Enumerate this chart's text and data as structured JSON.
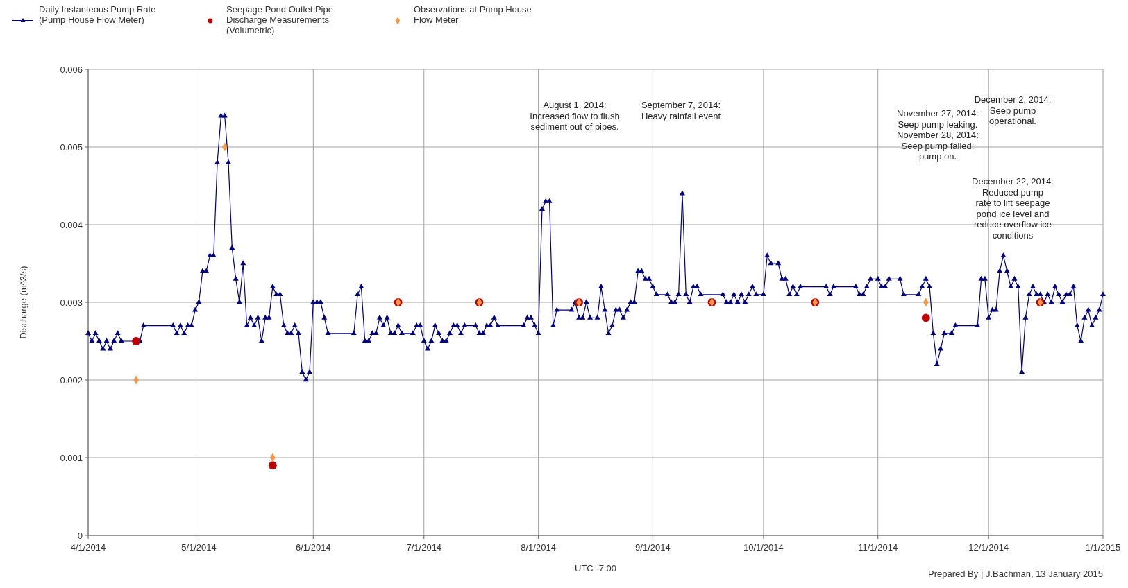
{
  "chart_data": {
    "type": "line",
    "xlabel": "UTC -7:00",
    "ylabel": "Discharge (m^3/s)",
    "xlim": [
      "2014-04-01",
      "2015-01-01"
    ],
    "ylim": [
      0,
      0.006
    ],
    "xticks": [
      {
        "value": "2014-04-01",
        "label": "4/1/2014"
      },
      {
        "value": "2014-05-01",
        "label": "5/1/2014"
      },
      {
        "value": "2014-06-01",
        "label": "6/1/2014"
      },
      {
        "value": "2014-07-01",
        "label": "7/1/2014"
      },
      {
        "value": "2014-08-01",
        "label": "8/1/2014"
      },
      {
        "value": "2014-09-01",
        "label": "9/1/2014"
      },
      {
        "value": "2014-10-01",
        "label": "10/1/2014"
      },
      {
        "value": "2014-11-01",
        "label": "11/1/2014"
      },
      {
        "value": "2014-12-01",
        "label": "12/1/2014"
      },
      {
        "value": "2015-01-01",
        "label": "1/1/2015"
      }
    ],
    "yticks": [
      0,
      0.001,
      0.002,
      0.003,
      0.004,
      0.005,
      0.006
    ],
    "grid": true,
    "legend": "top left",
    "series": [
      {
        "name": "Daily Instanteous Pump Rate (Pump House Flow Meter)",
        "color": "#000080",
        "marker": "triangle",
        "x": [
          "2014-04-01",
          "2014-04-02",
          "2014-04-03",
          "2014-04-04",
          "2014-04-05",
          "2014-04-06",
          "2014-04-07",
          "2014-04-08",
          "2014-04-09",
          "2014-04-10",
          "2014-04-14",
          "2014-04-15",
          "2014-04-16",
          "2014-04-24",
          "2014-04-25",
          "2014-04-26",
          "2014-04-27",
          "2014-04-28",
          "2014-04-29",
          "2014-04-30",
          "2014-05-01",
          "2014-05-02",
          "2014-05-03",
          "2014-05-04",
          "2014-05-05",
          "2014-05-06",
          "2014-05-07",
          "2014-05-08",
          "2014-05-09",
          "2014-05-10",
          "2014-05-11",
          "2014-05-12",
          "2014-05-13",
          "2014-05-14",
          "2014-05-15",
          "2014-05-16",
          "2014-05-17",
          "2014-05-18",
          "2014-05-19",
          "2014-05-20",
          "2014-05-21",
          "2014-05-22",
          "2014-05-23",
          "2014-05-24",
          "2014-05-25",
          "2014-05-26",
          "2014-05-27",
          "2014-05-28",
          "2014-05-29",
          "2014-05-30",
          "2014-05-31",
          "2014-06-01",
          "2014-06-02",
          "2014-06-03",
          "2014-06-04",
          "2014-06-05",
          "2014-06-12",
          "2014-06-13",
          "2014-06-14",
          "2014-06-15",
          "2014-06-16",
          "2014-06-17",
          "2014-06-18",
          "2014-06-19",
          "2014-06-20",
          "2014-06-21",
          "2014-06-22",
          "2014-06-23",
          "2014-06-24",
          "2014-06-25",
          "2014-06-28",
          "2014-06-29",
          "2014-06-30",
          "2014-07-01",
          "2014-07-02",
          "2014-07-03",
          "2014-07-04",
          "2014-07-05",
          "2014-07-06",
          "2014-07-07",
          "2014-07-08",
          "2014-07-09",
          "2014-07-10",
          "2014-07-11",
          "2014-07-12",
          "2014-07-15",
          "2014-07-16",
          "2014-07-17",
          "2014-07-18",
          "2014-07-19",
          "2014-07-20",
          "2014-07-21",
          "2014-07-28",
          "2014-07-29",
          "2014-07-30",
          "2014-07-31",
          "2014-08-01",
          "2014-08-02",
          "2014-08-03",
          "2014-08-04",
          "2014-08-05",
          "2014-08-06",
          "2014-08-10",
          "2014-08-11",
          "2014-08-12",
          "2014-08-13",
          "2014-08-14",
          "2014-08-15",
          "2014-08-17",
          "2014-08-18",
          "2014-08-19",
          "2014-08-20",
          "2014-08-21",
          "2014-08-22",
          "2014-08-23",
          "2014-08-24",
          "2014-08-25",
          "2014-08-26",
          "2014-08-27",
          "2014-08-28",
          "2014-08-29",
          "2014-08-30",
          "2014-08-31",
          "2014-09-01",
          "2014-09-02",
          "2014-09-05",
          "2014-09-06",
          "2014-09-07",
          "2014-09-08",
          "2014-09-09",
          "2014-09-10",
          "2014-09-11",
          "2014-09-12",
          "2014-09-13",
          "2014-09-14",
          "2014-09-20",
          "2014-09-21",
          "2014-09-22",
          "2014-09-23",
          "2014-09-24",
          "2014-09-25",
          "2014-09-26",
          "2014-09-27",
          "2014-09-28",
          "2014-09-29",
          "2014-10-01",
          "2014-10-02",
          "2014-10-03",
          "2014-10-05",
          "2014-10-06",
          "2014-10-07",
          "2014-10-08",
          "2014-10-09",
          "2014-10-10",
          "2014-10-11",
          "2014-10-18",
          "2014-10-19",
          "2014-10-20",
          "2014-10-26",
          "2014-10-27",
          "2014-10-28",
          "2014-10-29",
          "2014-10-30",
          "2014-11-01",
          "2014-11-02",
          "2014-11-03",
          "2014-11-04",
          "2014-11-07",
          "2014-11-08",
          "2014-11-12",
          "2014-11-13",
          "2014-11-14",
          "2014-11-15",
          "2014-11-16",
          "2014-11-17",
          "2014-11-18",
          "2014-11-19",
          "2014-11-21",
          "2014-11-22",
          "2014-11-28",
          "2014-11-29",
          "2014-11-30",
          "2014-12-01",
          "2014-12-02",
          "2014-12-03",
          "2014-12-04",
          "2014-12-05",
          "2014-12-06",
          "2014-12-07",
          "2014-12-08",
          "2014-12-09",
          "2014-12-10",
          "2014-12-11",
          "2014-12-12",
          "2014-12-13",
          "2014-12-14",
          "2014-12-15",
          "2014-12-16",
          "2014-12-17",
          "2014-12-18",
          "2014-12-19",
          "2014-12-20",
          "2014-12-21",
          "2014-12-22",
          "2014-12-23",
          "2014-12-24",
          "2014-12-25",
          "2014-12-26",
          "2014-12-27",
          "2014-12-28",
          "2014-12-29",
          "2014-12-30",
          "2014-12-31",
          "2015-01-01"
        ],
        "values": [
          0.0026,
          0.0025,
          0.0026,
          0.0025,
          0.0024,
          0.0025,
          0.0024,
          0.0025,
          0.0026,
          0.0025,
          null,
          0.0025,
          0.0027,
          0.0027,
          0.0026,
          0.0027,
          0.0026,
          0.0027,
          0.0027,
          0.0029,
          0.003,
          0.0034,
          0.0034,
          0.0036,
          0.0036,
          0.0048,
          0.0054,
          0.0054,
          0.0048,
          0.0037,
          0.0033,
          0.003,
          0.0035,
          0.0027,
          0.0028,
          0.0027,
          0.0028,
          0.0025,
          0.0028,
          0.0028,
          0.0032,
          0.0031,
          0.0031,
          0.0027,
          0.0026,
          0.0026,
          0.0027,
          0.0026,
          0.0021,
          0.002,
          0.0021,
          0.003,
          0.003,
          0.003,
          0.0028,
          0.0026,
          0.0026,
          0.0031,
          0.0032,
          0.0025,
          0.0025,
          0.0026,
          0.0026,
          0.0028,
          0.0027,
          0.0028,
          0.0026,
          0.0026,
          0.0027,
          0.0026,
          0.0026,
          0.0027,
          0.0027,
          0.0025,
          0.0024,
          0.0025,
          0.0027,
          0.0026,
          0.0025,
          0.0025,
          0.0026,
          0.0027,
          0.0027,
          0.0026,
          0.0027,
          0.0027,
          0.0026,
          0.0026,
          0.0027,
          0.0027,
          0.0028,
          0.0027,
          0.0027,
          0.0028,
          0.0028,
          0.0027,
          0.0026,
          0.0042,
          0.0043,
          0.0043,
          0.0027,
          0.0029,
          0.0029,
          0.003,
          0.0028,
          0.0028,
          0.003,
          0.0028,
          0.0028,
          0.0032,
          0.0029,
          0.0026,
          0.0027,
          0.0029,
          0.0029,
          0.0028,
          0.0029,
          0.003,
          0.003,
          0.0034,
          0.0034,
          0.0033,
          0.0033,
          0.0032,
          0.0031,
          0.0031,
          0.003,
          0.003,
          0.0031,
          0.0044,
          0.0031,
          0.003,
          0.0032,
          0.0032,
          0.0031,
          0.0031,
          0.003,
          0.003,
          0.0031,
          0.003,
          0.0031,
          0.003,
          0.0031,
          0.0032,
          0.0031,
          0.0031,
          0.0036,
          0.0035,
          0.0035,
          0.0033,
          0.0033,
          0.0031,
          0.0032,
          0.0031,
          0.0032,
          0.0032,
          0.0031,
          0.0032,
          0.0032,
          0.0031,
          0.0031,
          0.0032,
          0.0033,
          0.0033,
          0.0032,
          0.0032,
          0.0033,
          0.0033,
          0.0031,
          0.0031,
          0.0032,
          0.0033,
          0.0032,
          0.0026,
          0.0022,
          0.0024,
          0.0026,
          0.0026,
          0.0027,
          0.0027,
          0.0033,
          0.0033,
          0.0028,
          0.0029,
          0.0029,
          0.0034,
          0.0036,
          0.0034,
          0.0032,
          0.0033,
          0.0032,
          0.0021,
          0.0028,
          0.0031,
          0.0032,
          0.0031,
          0.0031,
          0.003,
          0.0031,
          0.003,
          0.0032,
          0.0031,
          0.003,
          0.0031,
          0.0031,
          0.0032,
          0.0027,
          0.0025,
          0.0028,
          0.0029,
          0.0027,
          0.0028,
          0.0029,
          0.0031
        ]
      },
      {
        "name": "Seepage Pond Outlet Pipe Discharge Measurements (Volumetric)",
        "type": "scatter",
        "color": "#c00000",
        "marker": "circle",
        "x": [
          "2014-04-14",
          "2014-05-21",
          "2014-06-24",
          "2014-07-16",
          "2014-08-12",
          "2014-09-17",
          "2014-10-15",
          "2014-11-14",
          "2014-12-15"
        ],
        "values": [
          0.0025,
          0.0009,
          0.003,
          0.003,
          0.003,
          0.003,
          0.003,
          0.0028,
          0.003
        ]
      },
      {
        "name": "Observations at Pump House Flow Meter",
        "type": "scatter",
        "color": "#f79646",
        "marker": "diamond",
        "x": [
          "2014-04-14",
          "2014-05-08",
          "2014-05-21",
          "2014-06-24",
          "2014-07-16",
          "2014-08-12",
          "2014-09-17",
          "2014-10-15",
          "2014-11-14",
          "2014-12-15"
        ],
        "values": [
          0.002,
          0.005,
          0.001,
          0.003,
          0.003,
          0.003,
          0.003,
          0.003,
          0.003,
          0.003
        ]
      }
    ],
    "annotations": [
      "August 1, 2014:\nIncreased flow to flush\nsediment out of pipes.",
      "September 7, 2014:\nHeavy rainfall event",
      "November 27, 2014:\nSeep pump leaking.\nNovember 28, 2014:\nSeep pump failed;\npump on.",
      "December 2, 2014:\nSeep pump\noperational.",
      "December 22, 2014:\nReduced pump\nrate to lift seepage\npond ice level and\nreduce overflow ice\nconditions",
      "Prepared By | J.Bachman, 13 January 2015"
    ]
  }
}
